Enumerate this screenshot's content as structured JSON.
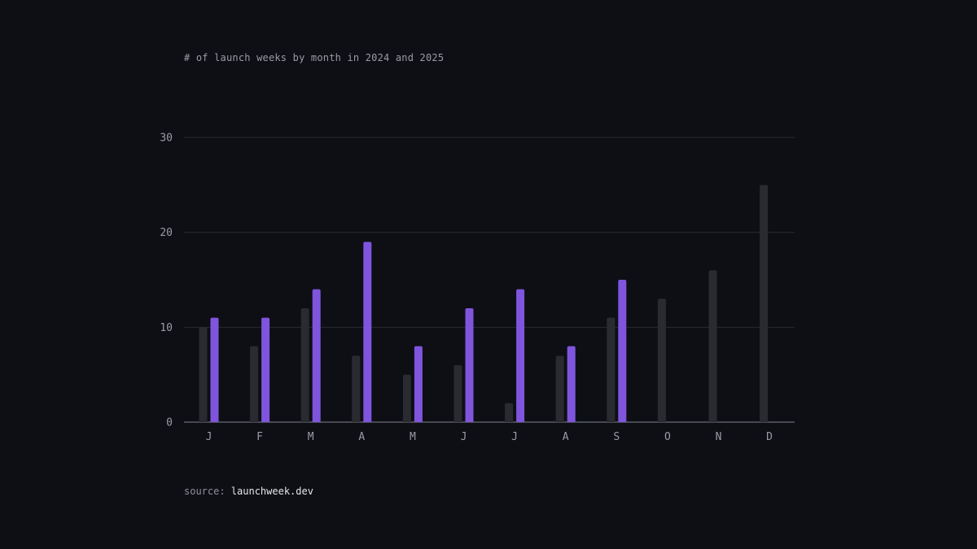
{
  "chart_data": {
    "type": "bar",
    "title": "# of launch weeks by month in 2024 and 2025",
    "categories": [
      "J",
      "F",
      "M",
      "A",
      "M",
      "J",
      "J",
      "A",
      "S",
      "O",
      "N",
      "D"
    ],
    "series": [
      {
        "values": [
          10,
          8,
          12,
          7,
          5,
          6,
          2,
          7,
          11,
          13,
          16,
          25
        ],
        "color": "#2a2b31"
      },
      {
        "values": [
          11,
          11,
          14,
          19,
          8,
          12,
          14,
          8,
          15,
          null,
          null,
          null
        ],
        "color": "#7f55de"
      }
    ],
    "yticks": [
      "0",
      "10",
      "20",
      "30"
    ],
    "ylim": [
      0,
      30
    ],
    "xlabel": "",
    "ylabel": "",
    "grid": true,
    "colors": {
      "background": "#0e0f15",
      "grid": "#2a2b31",
      "axis": "#6a6c74",
      "tick_label": "#9a9ca4"
    }
  },
  "source": {
    "label": "source:",
    "value": "launchweek.dev"
  }
}
